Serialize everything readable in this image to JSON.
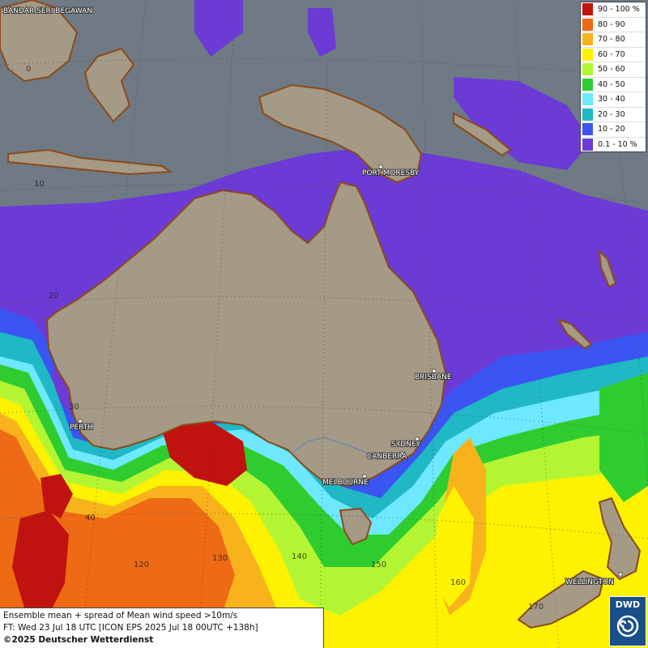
{
  "colors": {
    "ocean": "#6f7a84",
    "land": "#a49a86",
    "c10": "#6c3bd6",
    "c20": "#3a55f2",
    "c30": "#1fb8c4",
    "c40": "#6de8ff",
    "c50": "#2fcc2f",
    "c60": "#b4f533",
    "c70": "#fff200",
    "c80": "#f8b31c",
    "c90": "#ef6a14",
    "c100": "#c0130f"
  },
  "legend": [
    {
      "label": "90 - 100 %",
      "color": "#c0130f"
    },
    {
      "label": "80 - 90",
      "color": "#ef6a14"
    },
    {
      "label": "70 - 80",
      "color": "#f8b31c"
    },
    {
      "label": "60 - 70",
      "color": "#fff200"
    },
    {
      "label": "50 - 60",
      "color": "#b4f533"
    },
    {
      "label": "40 - 50",
      "color": "#2fcc2f"
    },
    {
      "label": "30 - 40",
      "color": "#6de8ff"
    },
    {
      "label": "20 - 30",
      "color": "#1fb8c4"
    },
    {
      "label": "10 - 20",
      "color": "#3a55f2"
    },
    {
      "label": "0.1 - 10 %",
      "color": "#6c3bd6"
    }
  ],
  "cities": {
    "bandar": "BANDAR SERI BEGAWAN",
    "port_moresby": "PORT MORESBY",
    "brisbane": "BRISBANE",
    "perth": "PERTH",
    "sydney": "SYDNEY",
    "canberra": "CANBERRA",
    "melbourne": "MELBOURNE",
    "wellington": "WELLINGTON"
  },
  "coords": {
    "lat0": "0",
    "lat10": "10",
    "lat20": "20",
    "lat30": "30",
    "lat40": "40",
    "lon120": "120",
    "lon130": "130",
    "lon140": "140",
    "lon150": "150",
    "lon160": "160",
    "lon170": "170"
  },
  "info": {
    "line1": "Ensemble mean + spread of Mean wind speed >10m/s",
    "line2": "FT: Wed 23 Jul 18 UTC [ICON EPS 2025 Jul 18 00UTC +138h]",
    "copyright": "©2025 Deutscher Wetterdienst"
  },
  "logo": {
    "text": "DWD"
  }
}
